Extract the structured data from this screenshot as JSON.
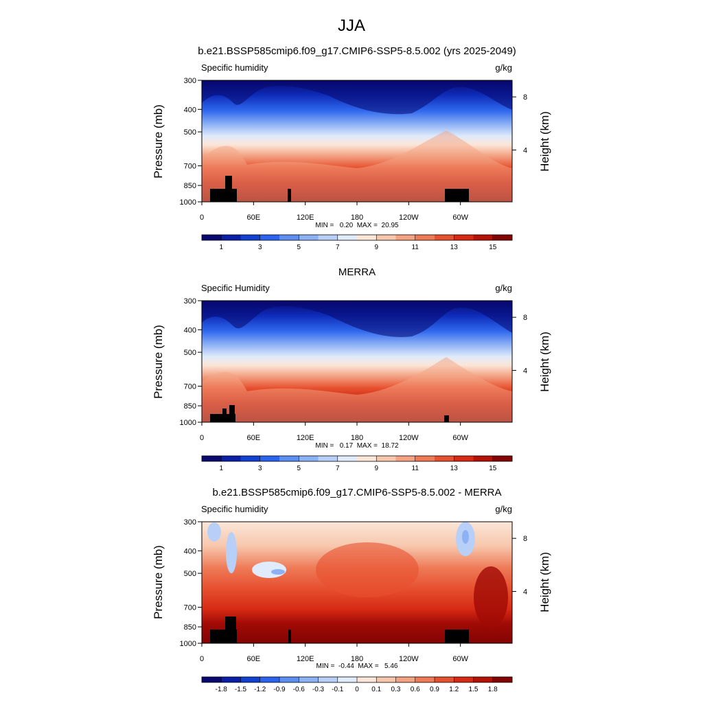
{
  "page_title": "JJA",
  "chart_data": [
    {
      "type": "heatmap",
      "title": "b.e21.BSSP585cmip6.f09_g17.CMIP6-SSP5-8.5.002 (yrs 2025-2049)",
      "left_label": "Specific humidity",
      "units": "g/kg",
      "ylabel": "Pressure (mb)",
      "ylabel_right": "Height (km)",
      "y_ticks": [
        "300",
        "400",
        "500",
        "700",
        "850",
        "1000"
      ],
      "y_tick_values": [
        300,
        400,
        500,
        700,
        850,
        1000
      ],
      "height_ticks": [
        "8",
        "4"
      ],
      "height_tick_values": [
        8,
        4
      ],
      "x_ticks": [
        "0",
        "60E",
        "120E",
        "180",
        "120W",
        "60W"
      ],
      "x_tick_values": [
        0,
        60,
        120,
        180,
        240,
        300
      ],
      "xlim": [
        0,
        360
      ],
      "ylim": [
        1000,
        300
      ],
      "stats": "MIN =   0.20  MAX =  20.95",
      "colorbar_labels": [
        "1",
        "3",
        "5",
        "7",
        "9",
        "11",
        "13",
        "15"
      ],
      "colorbar_colors": [
        "#08086e",
        "#0a1fa6",
        "#1240d0",
        "#2b63ee",
        "#5d8ff2",
        "#8cb1f5",
        "#b8d0f7",
        "#e0ebfb",
        "#fbe6d8",
        "#f7c7ad",
        "#f3a383",
        "#ee7a57",
        "#e7502f",
        "#d62a14",
        "#b51207",
        "#830404"
      ]
    },
    {
      "type": "heatmap",
      "title": "MERRA",
      "left_label": "Specific Humidity",
      "units": "g/kg",
      "ylabel": "Pressure (mb)",
      "ylabel_right": "Height (km)",
      "y_ticks": [
        "300",
        "400",
        "500",
        "700",
        "850",
        "1000"
      ],
      "y_tick_values": [
        300,
        400,
        500,
        700,
        850,
        1000
      ],
      "height_ticks": [
        "8",
        "4"
      ],
      "height_tick_values": [
        8,
        4
      ],
      "x_ticks": [
        "0",
        "60E",
        "120E",
        "180",
        "120W",
        "60W"
      ],
      "x_tick_values": [
        0,
        60,
        120,
        180,
        240,
        300
      ],
      "xlim": [
        0,
        360
      ],
      "ylim": [
        1000,
        300
      ],
      "stats": "MIN =   0.17  MAX =  18.72",
      "colorbar_labels": [
        "1",
        "3",
        "5",
        "7",
        "9",
        "11",
        "13",
        "15"
      ],
      "colorbar_colors": [
        "#08086e",
        "#0a1fa6",
        "#1240d0",
        "#2b63ee",
        "#5d8ff2",
        "#8cb1f5",
        "#b8d0f7",
        "#e0ebfb",
        "#fbe6d8",
        "#f7c7ad",
        "#f3a383",
        "#ee7a57",
        "#e7502f",
        "#d62a14",
        "#b51207",
        "#830404"
      ]
    },
    {
      "type": "heatmap",
      "title": "b.e21.BSSP585cmip6.f09_g17.CMIP6-SSP5-8.5.002 - MERRA",
      "left_label": "Specific humidity",
      "units": "g/kg",
      "ylabel": "Pressure (mb)",
      "ylabel_right": "Height (km)",
      "y_ticks": [
        "300",
        "400",
        "500",
        "700",
        "850",
        "1000"
      ],
      "y_tick_values": [
        300,
        400,
        500,
        700,
        850,
        1000
      ],
      "height_ticks": [
        "8",
        "4"
      ],
      "height_tick_values": [
        8,
        4
      ],
      "x_ticks": [
        "0",
        "60E",
        "120E",
        "180",
        "120W",
        "60W"
      ],
      "x_tick_values": [
        0,
        60,
        120,
        180,
        240,
        300
      ],
      "xlim": [
        0,
        360
      ],
      "ylim": [
        1000,
        300
      ],
      "stats": "MIN =  -0.44  MAX =   5.46",
      "colorbar_labels": [
        "-1.8",
        "-1.5",
        "-1.2",
        "-0.9",
        "-0.6",
        "-0.3",
        "-0.1",
        "0",
        "0.1",
        "0.3",
        "0.6",
        "0.9",
        "1.2",
        "1.5",
        "1.8"
      ],
      "colorbar_colors": [
        "#08086e",
        "#0a1fa6",
        "#1240d0",
        "#2b63ee",
        "#5d8ff2",
        "#8cb1f5",
        "#b8d0f7",
        "#e0ebfb",
        "#fbe6d8",
        "#f7c7ad",
        "#f3a383",
        "#ee7a57",
        "#e7502f",
        "#d62a14",
        "#b51207",
        "#830404"
      ]
    }
  ]
}
